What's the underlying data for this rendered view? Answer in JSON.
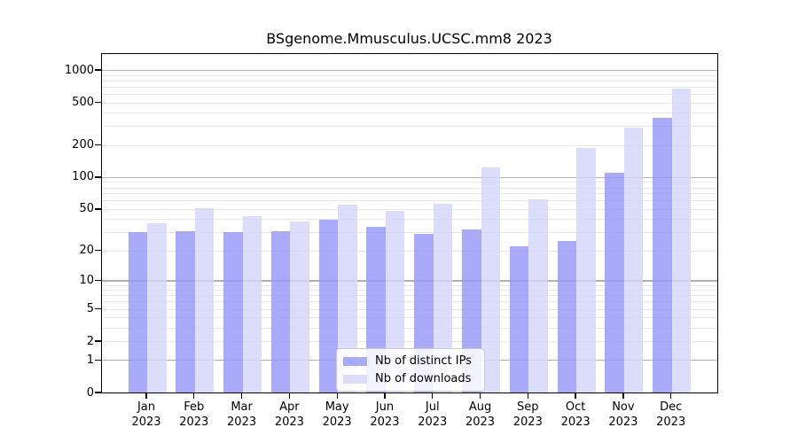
{
  "chart_data": {
    "type": "bar",
    "title": "BSgenome.Mmusculus.UCSC.mm8 2023",
    "year": "2023",
    "categories": [
      "Jan",
      "Feb",
      "Mar",
      "Apr",
      "May",
      "Jun",
      "Jul",
      "Aug",
      "Sep",
      "Oct",
      "Nov",
      "Dec"
    ],
    "series": [
      {
        "name": "Nb of distinct IPs",
        "color": "#aaaafb",
        "values": [
          30,
          31,
          30,
          31,
          40,
          34,
          29,
          32,
          22,
          25,
          110,
          360
        ]
      },
      {
        "name": "Nb of downloads",
        "color": "#dcdcfb",
        "values": [
          37,
          51,
          43,
          38,
          55,
          48,
          56,
          125,
          62,
          190,
          290,
          680
        ]
      }
    ],
    "yticks": [
      0,
      1,
      2,
      5,
      10,
      20,
      50,
      100,
      200,
      500,
      1000
    ],
    "yscale": "log10(1+y)",
    "ylim": [
      0,
      1450
    ],
    "xlabel": "",
    "ylabel": "",
    "grid": "horizontal",
    "legend_position": "lower center"
  }
}
